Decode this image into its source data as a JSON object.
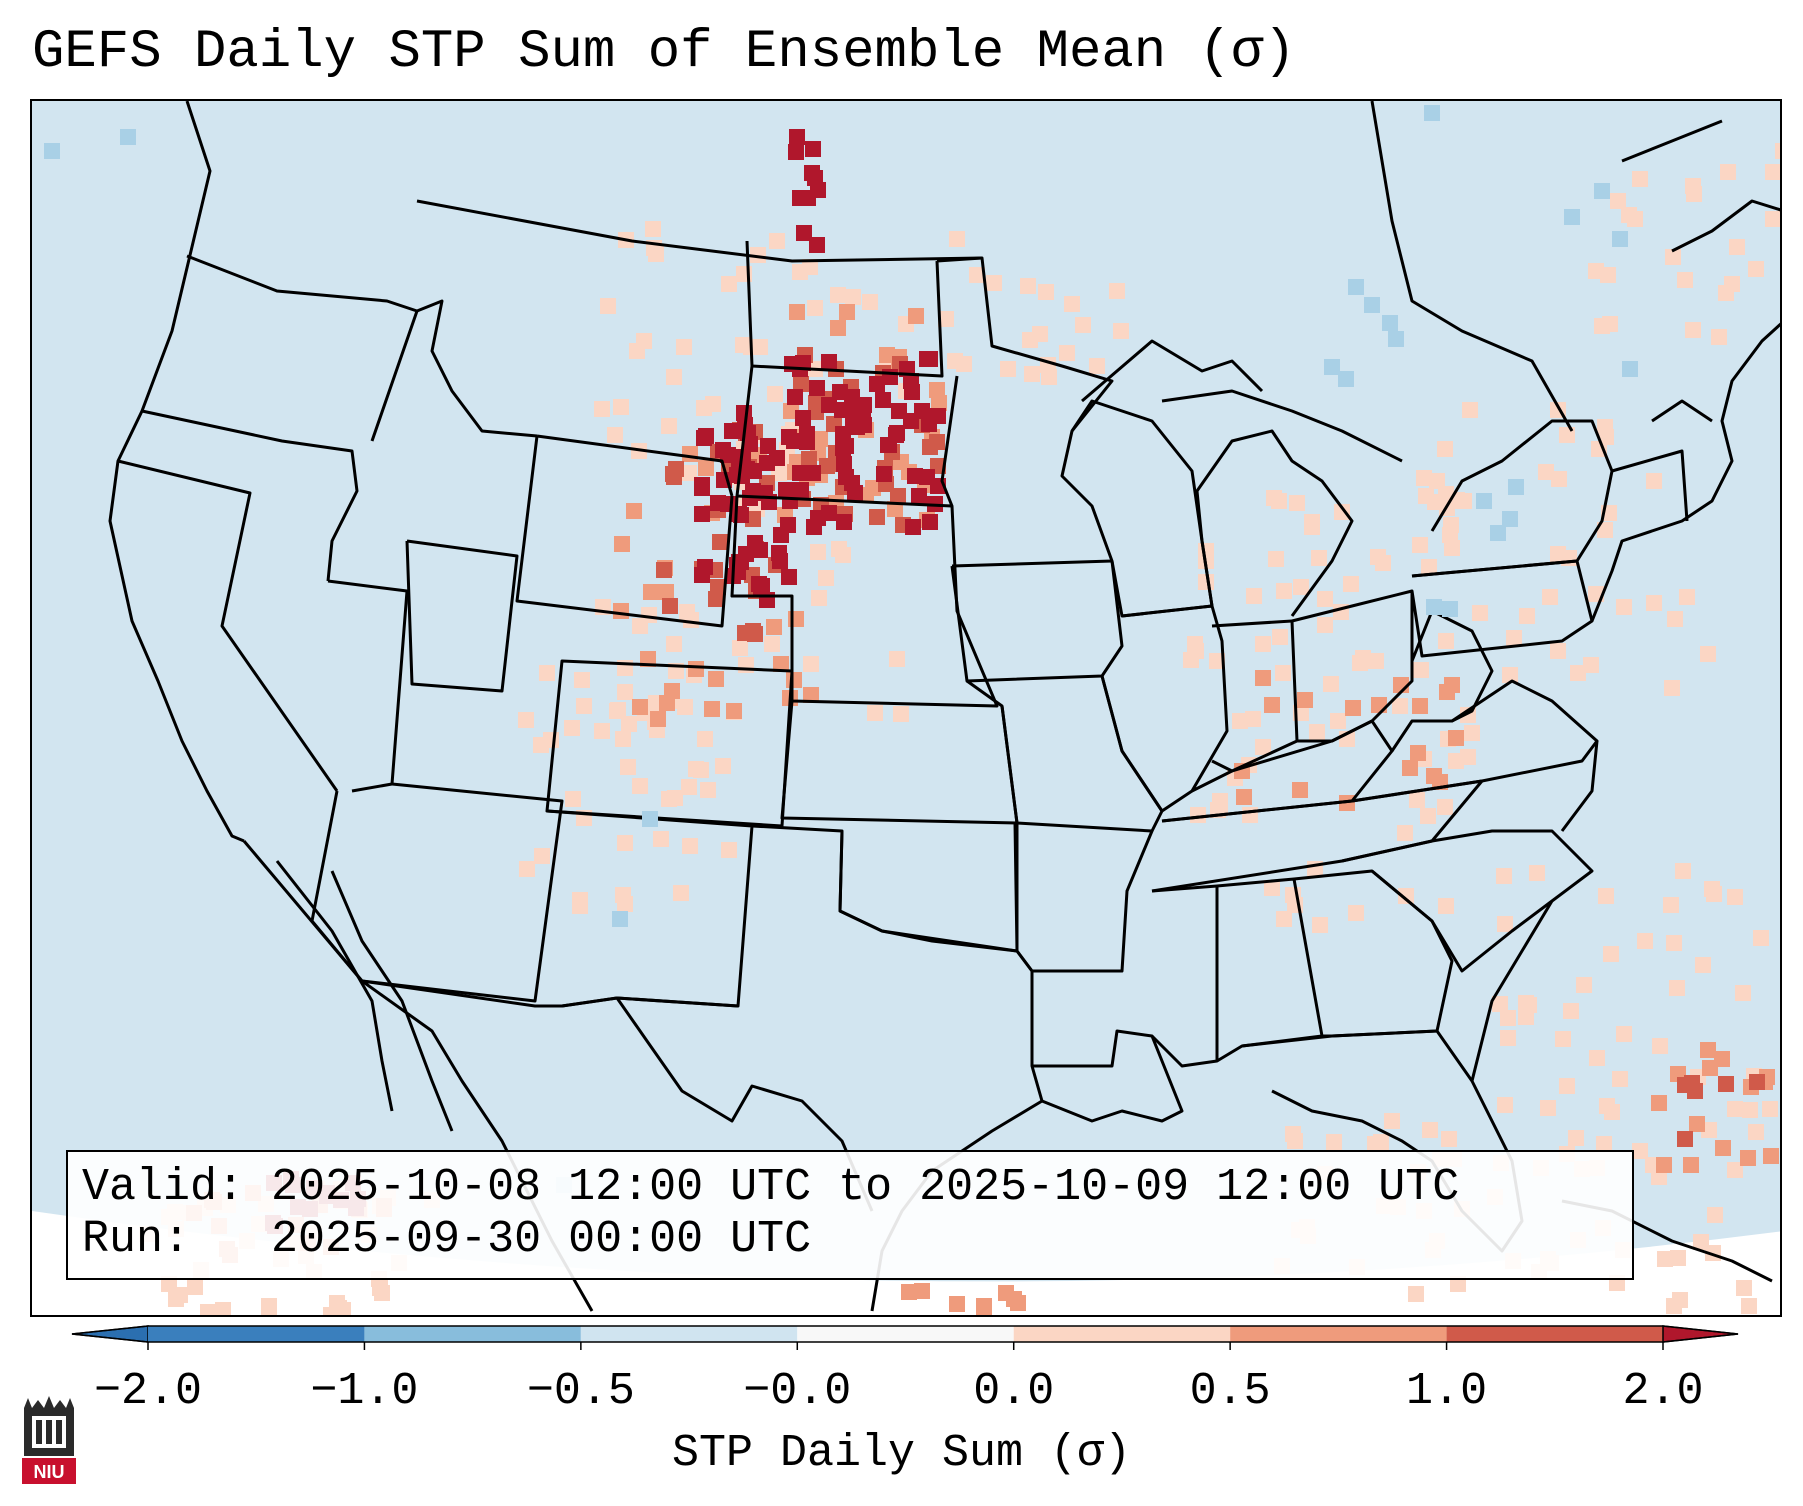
{
  "title": "GEFS Daily STP Sum of Ensemble Mean (σ)",
  "info": {
    "valid_line": "Valid: 2025-10-08 12:00 UTC to 2025-10-09 12:00 UTC",
    "run_line": "Run:   2025-09-30 00:00 UTC"
  },
  "colorbar": {
    "label": "STP Daily Sum (σ)",
    "ticks": [
      "−2.0",
      "−1.0",
      "−0.5",
      "−0.0",
      "0.0",
      "0.5",
      "1.0",
      "2.0"
    ],
    "bin_colors": [
      "#3a7fbd",
      "#88bddc",
      "#d0e4f0",
      "#f8f8f8",
      "#fbd6c4",
      "#ef9b7c",
      "#d05a4a"
    ],
    "under_color": "#2b6fb0",
    "over_color": "#b0172c"
  },
  "map": {
    "background_color": "#d2e5f0",
    "outside_color": "#ffffff",
    "legend_colors": {
      "light": "#fbd6c4",
      "medium": "#ef9b7c",
      "dark": "#d05a4a",
      "extreme": "#b0172c",
      "neg_light": "#a9d0e6",
      "neg_mid": "#88bddc"
    },
    "logo_label": "NIU"
  }
}
